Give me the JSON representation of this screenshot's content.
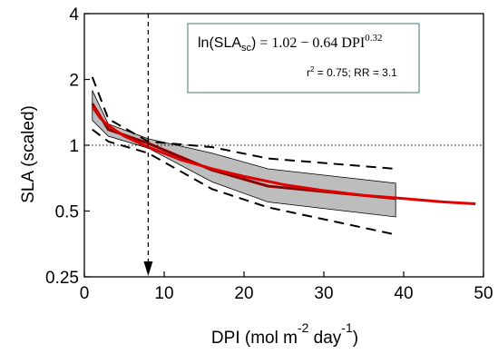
{
  "chart_data": {
    "type": "line",
    "xlabel": {
      "text": "DPI (mol m",
      "sup1": "-2",
      "mid": " day",
      "sup2": "-1",
      "end": ")"
    },
    "ylabel": "SLA (scaled)",
    "xlim": [
      0,
      50
    ],
    "ylim": [
      0.25,
      4
    ],
    "y_scale": "log",
    "x_ticks": [
      "0",
      "10",
      "20",
      "30",
      "40",
      "50"
    ],
    "y_ticks": [
      {
        "value": 0.25,
        "label": "0.25"
      },
      {
        "value": 0.5,
        "label": "0.5"
      },
      {
        "value": 1,
        "label": "1"
      },
      {
        "value": 2,
        "label": "2"
      },
      {
        "value": 4,
        "label": "4"
      }
    ],
    "grid": false,
    "reference_line_y": 1,
    "vertical_marker_x": 8,
    "band": {
      "x": [
        1,
        3,
        8,
        16,
        23,
        39
      ],
      "upper": [
        1.78,
        1.25,
        1.07,
        0.92,
        0.78,
        0.67
      ],
      "lower": [
        1.3,
        1.1,
        0.97,
        0.68,
        0.55,
        0.47
      ]
    },
    "series": [
      {
        "x": [
          1,
          3,
          8,
          16,
          23,
          39
        ],
        "values": [
          2.05,
          1.32,
          1.04,
          0.98,
          0.87,
          0.78
        ],
        "color": "#000000",
        "dash": true
      },
      {
        "x": [
          1,
          3,
          8,
          16,
          23,
          39
        ],
        "values": [
          1.18,
          1.04,
          0.92,
          0.63,
          0.52,
          0.39
        ],
        "color": "#000000",
        "dash": true
      },
      {
        "x": [
          1,
          3,
          8,
          16,
          23,
          39
        ],
        "values": [
          1.55,
          1.18,
          1.02,
          0.77,
          0.65,
          0.57
        ],
        "color": "#8b0000",
        "dash": false
      },
      {
        "x": [
          1,
          2,
          3,
          5,
          8,
          12,
          16,
          20,
          25,
          30,
          35,
          40,
          45,
          49
        ],
        "values": [
          1.5,
          1.33,
          1.23,
          1.1,
          0.98,
          0.86,
          0.78,
          0.72,
          0.66,
          0.62,
          0.59,
          0.57,
          0.55,
          0.54
        ],
        "color": "#e00000",
        "dash": false
      }
    ],
    "annotation": {
      "eq_ln": "ln(SLA",
      "eq_sub": "sc",
      "eq_close": ")",
      "eq_rhs": "= 1.02 − 0.64 DPI",
      "eq_exp": "0.32",
      "stats_r": "r",
      "stats_sup": "2",
      "stats_rest": " = 0.75; RR = 3.1"
    }
  },
  "colors": {
    "band_fill": "#bdbdbd",
    "box_border": "#7fa3a3",
    "fit_line": "#e00000",
    "data_line": "#8b0000"
  }
}
